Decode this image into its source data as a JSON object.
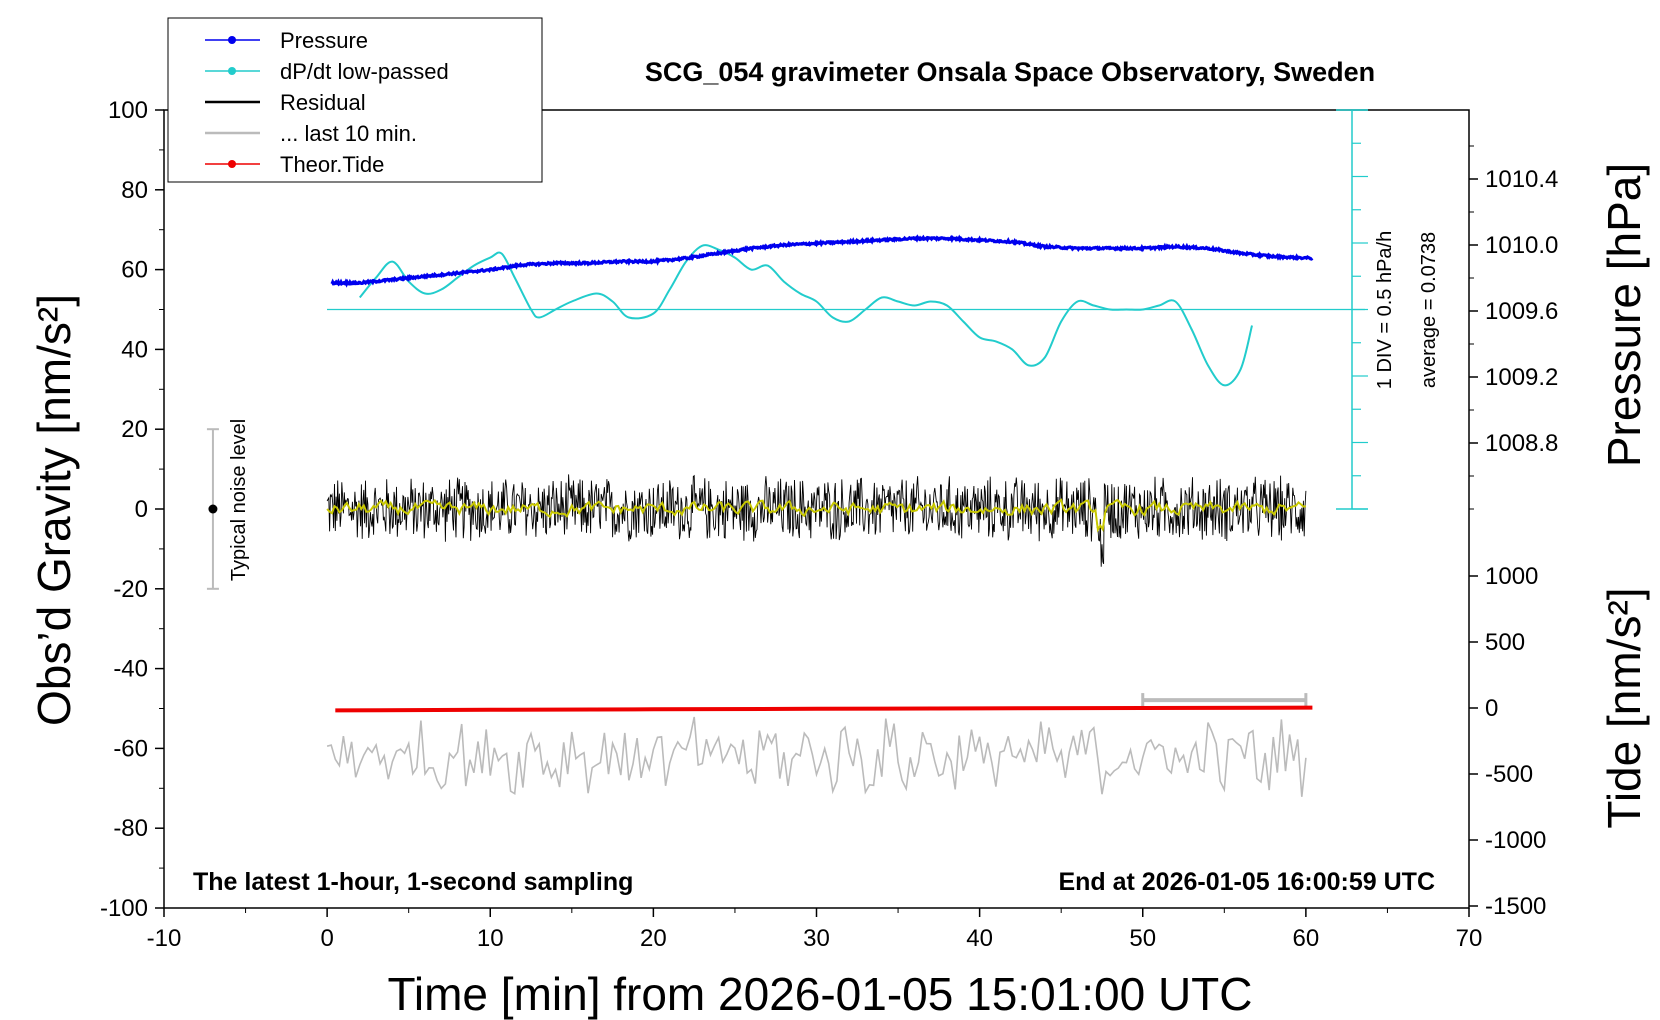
{
  "chart_data": {
    "type": "line",
    "title": "SCG_054 gravimeter Onsala Space Observatory, Sweden",
    "xlabel": "Time [min] from 2026-01-05 15:01:00 UTC",
    "ylabel_left": "Obs’d Gravity [nm/s²]",
    "ylabel_right_top": "Pressure [hPa]",
    "ylabel_right_bottom": "Tide [nm/s²]",
    "xlim": [
      -10,
      70
    ],
    "ylim_left": [
      -100,
      100
    ],
    "x_ticks": [
      "-10",
      "0",
      "10",
      "20",
      "30",
      "40",
      "50",
      "60",
      "70"
    ],
    "y_ticks_left": [
      "100",
      "80",
      "60",
      "40",
      "20",
      "0",
      "-20",
      "-40",
      "-60",
      "-80",
      "-100"
    ],
    "pressure_ticks": [
      "1010.4",
      "1010.0",
      "1009.6",
      "1009.2",
      "1008.8"
    ],
    "tide_ticks": [
      "1000",
      "500",
      "0",
      "-500",
      "-1000",
      "-1500"
    ],
    "bottom_left_note": "The latest 1-hour, 1-second sampling",
    "bottom_right_note": "End at 2026-01-05 16:00:59 UTC",
    "noise_label": "Typical noise level",
    "noise_range": [
      -20,
      20
    ],
    "dpdt_scale_note": "1 DIV = 0.5 hPa/h",
    "dpdt_average_note": "average = 0.0738",
    "legend": {
      "placement": "top-left",
      "items": [
        {
          "label": "Pressure",
          "color": "#0000ee",
          "marker": true
        },
        {
          "label": "dP/dt low-passed",
          "color": "#22cccc",
          "marker": true
        },
        {
          "label": "Residual",
          "color": "#000000",
          "marker": false
        },
        {
          "label": "... last 10 min.",
          "color": "#bbbbbb",
          "marker": false
        },
        {
          "label": "Theor.Tide",
          "color": "#ee0000",
          "marker": true
        }
      ]
    },
    "series": [
      {
        "name": "Pressure",
        "color": "#0000ee",
        "axis": "pressure_hPa",
        "x": [
          0.3,
          2,
          4,
          6,
          8,
          10,
          12,
          14,
          16,
          18,
          20,
          22,
          24,
          26,
          28,
          30,
          32,
          34,
          36,
          38,
          40,
          42,
          44,
          46,
          48,
          50,
          52,
          54,
          56,
          58,
          60.4
        ],
        "values": [
          1009.77,
          1009.77,
          1009.79,
          1009.81,
          1009.83,
          1009.85,
          1009.88,
          1009.89,
          1009.89,
          1009.9,
          1009.9,
          1009.92,
          1009.95,
          1009.98,
          1010.0,
          1010.01,
          1010.02,
          1010.03,
          1010.04,
          1010.04,
          1010.03,
          1010.02,
          1009.99,
          1009.98,
          1009.98,
          1009.98,
          1009.99,
          1009.98,
          1009.95,
          1009.93,
          1009.92
        ]
      },
      {
        "name": "dP/dt low-passed",
        "color": "#22cccc",
        "axis": "gravity_equiv",
        "x": [
          2,
          3,
          4,
          5,
          6,
          7,
          8,
          9,
          10,
          10.7,
          11.5,
          12.5,
          13,
          14,
          15,
          16.5,
          17.5,
          18.5,
          20,
          21,
          22,
          23,
          24,
          25,
          26,
          27,
          28,
          29,
          30,
          31,
          32,
          33,
          34,
          35,
          36,
          37,
          38,
          39,
          40,
          41,
          42,
          43,
          44,
          45,
          46,
          47,
          48,
          49,
          50,
          51,
          52,
          53,
          54,
          55,
          56,
          56.7
        ],
        "values": [
          53,
          58,
          62,
          57,
          54,
          55,
          58,
          61,
          63,
          64,
          58,
          50,
          48,
          50,
          52,
          54,
          52,
          48,
          49,
          55,
          62,
          66,
          65,
          63,
          60,
          61,
          57,
          54,
          52,
          48,
          47,
          50,
          53,
          52,
          51,
          52,
          51,
          47,
          43,
          42,
          40,
          36,
          38,
          47,
          52,
          51,
          50,
          50,
          50,
          51,
          52,
          45,
          36,
          31,
          35,
          46
        ]
      },
      {
        "name": "Residual",
        "color": "#000000",
        "axis": "gravity",
        "x": [
          0,
          60
        ],
        "noise_amplitude_nm_s2": 9,
        "values": [
          0,
          0
        ]
      },
      {
        "name": "Residual smoothed",
        "color": "#c8c800",
        "axis": "gravity",
        "x": [
          0,
          60
        ],
        "noise_amplitude_nm_s2": 3,
        "values": [
          0,
          0
        ]
      },
      {
        "name": "... last 10 min.",
        "color": "#bbbbbb",
        "axis": "gravity_offset",
        "x": [
          0,
          60
        ],
        "offset_nm_s2": -62,
        "noise_amplitude_nm_s2": 9,
        "values": [
          -62,
          -62
        ]
      },
      {
        "name": "Theor.Tide",
        "color": "#ee0000",
        "axis": "tide_nm_s2",
        "x": [
          0.5,
          10,
          20,
          30,
          40,
          50,
          60.4
        ],
        "values": [
          -18,
          -14,
          -10,
          -6,
          -3,
          0,
          3
        ]
      }
    ],
    "ten_min_marker": {
      "x": [
        50,
        60
      ],
      "value": 60
    }
  }
}
